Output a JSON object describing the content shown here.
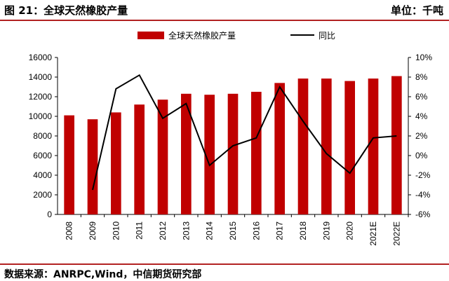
{
  "header": {
    "figure_title": "图 21：全球天然橡胶产量",
    "unit_label": "单位：千吨"
  },
  "footer": {
    "source": "数据来源：ANRPC,Wind，中信期货研究部"
  },
  "colors": {
    "bar": "#c00000",
    "line": "#000000",
    "rule": "#b22222"
  },
  "chart_data": {
    "type": "bar",
    "categories": [
      "2008",
      "2009",
      "2010",
      "2011",
      "2012",
      "2013",
      "2014",
      "2015",
      "2016",
      "2017",
      "2018",
      "2019",
      "2020",
      "2021E",
      "2022E"
    ],
    "series": [
      {
        "name": "全球天然橡胶产量",
        "type": "bar",
        "axis": "left",
        "values": [
          10100,
          9700,
          10400,
          11200,
          11700,
          12300,
          12200,
          12300,
          12500,
          13400,
          13850,
          13850,
          13600,
          13850,
          14100
        ]
      },
      {
        "name": "同比",
        "type": "line",
        "axis": "right",
        "values": [
          null,
          -3.5,
          6.8,
          8.2,
          3.8,
          5.3,
          -1.0,
          1.0,
          1.8,
          7.0,
          3.5,
          0.2,
          -1.8,
          1.8,
          2.0
        ]
      }
    ],
    "y_left": {
      "min": 0,
      "max": 16000,
      "ticks": [
        0,
        2000,
        4000,
        6000,
        8000,
        10000,
        12000,
        14000,
        16000
      ]
    },
    "y_right": {
      "min": -6,
      "max": 10,
      "ticks": [
        -6,
        -4,
        -2,
        0,
        2,
        4,
        6,
        8,
        10
      ],
      "suffix": "%"
    },
    "legend_position": "top",
    "grid": false
  }
}
